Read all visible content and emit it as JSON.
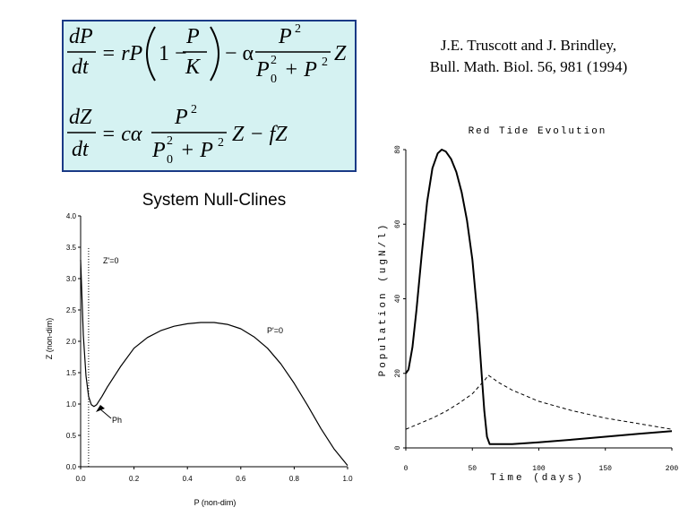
{
  "equations": {
    "dP": "dP",
    "dt": "dt",
    "dZ": "dZ",
    "eq1_rhs1": "= rP",
    "one_minus": "1 −",
    "P": "P",
    "K": "K",
    "minus_alpha": "− α",
    "P2": "P",
    "exp2": "2",
    "P0": "P",
    "sub0": "0",
    "plusP2": "+ P",
    "Z": "Z",
    "eq2_rhs1": "= cα",
    "minus_fZ": "Z − fZ"
  },
  "citation": {
    "line1": "J.E. Truscott and J. Brindley,",
    "line2": "Bull. Math. Biol. 56, 981 (1994)"
  },
  "chart_data": [
    {
      "type": "line",
      "title": "System Null-Clines",
      "xlabel": "P (non-dim)",
      "ylabel": "Z (non-dim)",
      "xlim": [
        0,
        1.0
      ],
      "ylim": [
        0,
        4.0
      ],
      "x_ticks": [
        "0.0",
        "0.2",
        "0.4",
        "0.6",
        "0.8",
        "1.0"
      ],
      "y_ticks": [
        "0.0",
        "0.5",
        "1.0",
        "1.5",
        "2.0",
        "2.5",
        "3.0",
        "3.5",
        "4.0"
      ],
      "annotations": [
        "Z'=0",
        "P'=0",
        "Ph"
      ],
      "grid": false,
      "series": [
        {
          "name": "P'=0",
          "style": "solid",
          "x": [
            0.0,
            0.01,
            0.02,
            0.03,
            0.04,
            0.05,
            0.06,
            0.08,
            0.1,
            0.15,
            0.2,
            0.25,
            0.3,
            0.35,
            0.4,
            0.45,
            0.5,
            0.55,
            0.6,
            0.65,
            0.7,
            0.75,
            0.8,
            0.85,
            0.9,
            0.95,
            1.0
          ],
          "y": [
            3.3,
            2.1,
            1.45,
            1.12,
            0.99,
            0.96,
            0.99,
            1.12,
            1.27,
            1.6,
            1.89,
            2.06,
            2.17,
            2.24,
            2.28,
            2.3,
            2.3,
            2.27,
            2.2,
            2.07,
            1.89,
            1.64,
            1.33,
            0.98,
            0.61,
            0.28,
            0.02
          ]
        },
        {
          "name": "Z'=0",
          "style": "dotted",
          "x": [
            0.03,
            0.03
          ],
          "y": [
            0.0,
            3.5
          ]
        }
      ]
    },
    {
      "type": "line",
      "title": "Red Tide Evolution",
      "xlabel": "Time (days)",
      "ylabel": "Population (ugN/l)",
      "xlim": [
        0,
        200
      ],
      "ylim": [
        0,
        80
      ],
      "x_ticks": [
        "0",
        "50",
        "100",
        "150",
        "200"
      ],
      "y_ticks": [
        "0",
        "20",
        "40",
        "60",
        "80"
      ],
      "grid": false,
      "series": [
        {
          "style": "solid",
          "x": [
            0,
            2,
            5,
            8,
            12,
            16,
            20,
            24,
            27,
            30,
            34,
            38,
            42,
            46,
            50,
            54,
            57,
            59,
            61,
            63,
            70,
            80,
            100,
            125,
            150,
            175,
            200
          ],
          "y": [
            20,
            21,
            27,
            37,
            52,
            66,
            75,
            79,
            80,
            79.5,
            77.5,
            74,
            68.5,
            61,
            50.5,
            35,
            20,
            10,
            3,
            1,
            1,
            1,
            1.5,
            2.2,
            3,
            3.8,
            4.5
          ]
        },
        {
          "style": "dashed",
          "x": [
            0,
            10,
            20,
            30,
            40,
            50,
            55,
            60,
            62,
            70,
            80,
            100,
            125,
            150,
            175,
            200
          ],
          "y": [
            5,
            6.5,
            8,
            9.8,
            12,
            14.5,
            16.5,
            18.5,
            19.5,
            17.5,
            15.5,
            12.5,
            10,
            8,
            6.5,
            5
          ]
        }
      ]
    }
  ]
}
